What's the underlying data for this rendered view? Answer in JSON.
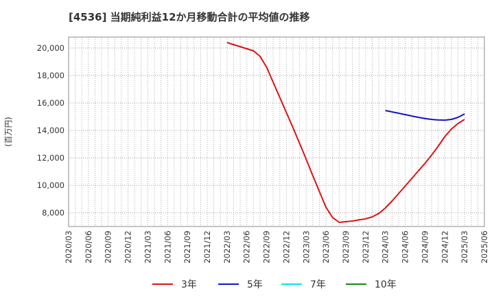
{
  "chart_data": {
    "type": "line",
    "title": "[4536]  当期純利益12か月移動合計の平均値の推移",
    "ylabel": "(百万円)",
    "xlabel": "",
    "ylim": [
      7000,
      20800
    ],
    "yticks": [
      8000,
      10000,
      12000,
      14000,
      16000,
      18000,
      20000
    ],
    "ytick_labels": [
      "8,000",
      "10,000",
      "12,000",
      "14,000",
      "16,000",
      "18,000",
      "20,000"
    ],
    "xticks": [
      "2020/03",
      "2020/06",
      "2020/09",
      "2020/12",
      "2021/03",
      "2021/06",
      "2021/09",
      "2021/12",
      "2022/03",
      "2022/06",
      "2022/09",
      "2022/12",
      "2023/03",
      "2023/06",
      "2023/09",
      "2023/12",
      "2024/03",
      "2024/06",
      "2024/09",
      "2024/12",
      "2025/03",
      "2025/06"
    ],
    "grid": true,
    "series": [
      {
        "name": "3年",
        "color": "#dd1111",
        "points": [
          [
            "2022/03",
            20400
          ],
          [
            "2022/04",
            20250
          ],
          [
            "2022/05",
            20100
          ],
          [
            "2022/06",
            19950
          ],
          [
            "2022/07",
            19800
          ],
          [
            "2022/08",
            19400
          ],
          [
            "2022/09",
            18600
          ],
          [
            "2022/10",
            17500
          ],
          [
            "2022/11",
            16400
          ],
          [
            "2022/12",
            15300
          ],
          [
            "2023/01",
            14200
          ],
          [
            "2023/02",
            13050
          ],
          [
            "2023/03",
            11900
          ],
          [
            "2023/04",
            10700
          ],
          [
            "2023/05",
            9550
          ],
          [
            "2023/06",
            8400
          ],
          [
            "2023/07",
            7650
          ],
          [
            "2023/08",
            7300
          ],
          [
            "2023/09",
            7350
          ],
          [
            "2023/10",
            7400
          ],
          [
            "2023/11",
            7480
          ],
          [
            "2023/12",
            7560
          ],
          [
            "2024/01",
            7700
          ],
          [
            "2024/02",
            7950
          ],
          [
            "2024/03",
            8350
          ],
          [
            "2024/04",
            8850
          ],
          [
            "2024/05",
            9400
          ],
          [
            "2024/06",
            9950
          ],
          [
            "2024/07",
            10500
          ],
          [
            "2024/08",
            11050
          ],
          [
            "2024/09",
            11600
          ],
          [
            "2024/10",
            12200
          ],
          [
            "2024/11",
            12850
          ],
          [
            "2024/12",
            13550
          ],
          [
            "2025/01",
            14100
          ],
          [
            "2025/02",
            14500
          ],
          [
            "2025/03",
            14800
          ]
        ]
      },
      {
        "name": "5年",
        "color": "#1111cc",
        "points": [
          [
            "2024/03",
            15450
          ],
          [
            "2024/04",
            15350
          ],
          [
            "2024/05",
            15250
          ],
          [
            "2024/06",
            15150
          ],
          [
            "2024/07",
            15050
          ],
          [
            "2024/08",
            14950
          ],
          [
            "2024/09",
            14870
          ],
          [
            "2024/10",
            14800
          ],
          [
            "2024/11",
            14760
          ],
          [
            "2024/12",
            14750
          ],
          [
            "2025/01",
            14800
          ],
          [
            "2025/02",
            14950
          ],
          [
            "2025/03",
            15200
          ]
        ]
      },
      {
        "name": "7年",
        "color": "#00e5ee",
        "points": []
      },
      {
        "name": "10年",
        "color": "#118811",
        "points": []
      }
    ]
  }
}
